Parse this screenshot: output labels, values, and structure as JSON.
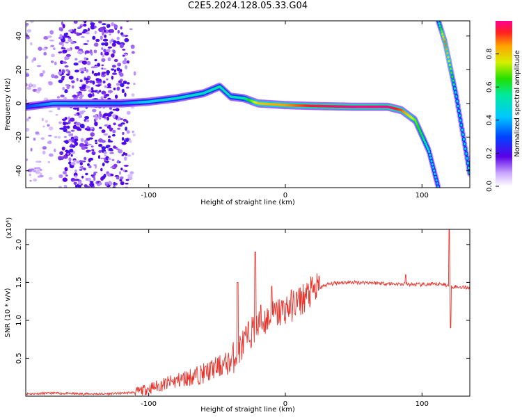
{
  "title": "C2E5.2024.128.05.33.G04",
  "colors": {
    "snr_line": "#e8322a",
    "axis": "#000000",
    "background": "#ffffff"
  },
  "chart_data": [
    {
      "type": "heatmap",
      "title": "C2E5.2024.128.05.33.G04",
      "xlabel": "Height of straight line (km)",
      "ylabel": "Frequency (Hz)",
      "xlim": [
        -190,
        135
      ],
      "ylim": [
        -50,
        49
      ],
      "x_ticks": [
        -100,
        0,
        100
      ],
      "y_ticks": [
        -40,
        -20,
        0,
        20,
        40
      ],
      "colorbar": {
        "label": "Normalized spectral amplitude",
        "range": [
          0,
          1
        ],
        "ticks": [
          0.0,
          0.2,
          0.4,
          0.6,
          0.8
        ]
      },
      "main_trace": [
        {
          "x": -190,
          "y": -2,
          "amp": 0.3
        },
        {
          "x": -170,
          "y": 0,
          "amp": 0.4
        },
        {
          "x": -120,
          "y": 0,
          "amp": 0.35
        },
        {
          "x": -100,
          "y": 1,
          "amp": 0.45
        },
        {
          "x": -80,
          "y": 3,
          "amp": 0.5
        },
        {
          "x": -60,
          "y": 6,
          "amp": 0.5
        },
        {
          "x": -48,
          "y": 10,
          "amp": 0.55
        },
        {
          "x": -40,
          "y": 4,
          "amp": 0.5
        },
        {
          "x": -30,
          "y": 3,
          "amp": 0.55
        },
        {
          "x": -20,
          "y": 0,
          "amp": 0.8
        },
        {
          "x": 0,
          "y": -1,
          "amp": 0.85
        },
        {
          "x": 20,
          "y": -1.5,
          "amp": 0.95
        },
        {
          "x": 50,
          "y": -2,
          "amp": 1.0
        },
        {
          "x": 75,
          "y": -2,
          "amp": 1.0
        },
        {
          "x": 85,
          "y": -4,
          "amp": 0.9
        },
        {
          "x": 95,
          "y": -10,
          "amp": 0.7
        },
        {
          "x": 105,
          "y": -28,
          "amp": 0.5
        },
        {
          "x": 112,
          "y": -50,
          "amp": 0.4
        }
      ],
      "secondary_trace": [
        {
          "x": 112,
          "y": 49,
          "amp": 0.5
        },
        {
          "x": 117,
          "y": 36,
          "amp": 0.9
        },
        {
          "x": 125,
          "y": 5,
          "amp": 0.5
        },
        {
          "x": 135,
          "y": -42,
          "amp": 0.5
        }
      ]
    },
    {
      "type": "line",
      "xlabel": "Height of straight line (km)",
      "ylabel": "SNR (10 * v/v)",
      "y_multiplier": "(x10⁴)",
      "xlim": [
        -190,
        135
      ],
      "ylim": [
        0,
        2.2
      ],
      "x_ticks": [
        -100,
        0,
        100
      ],
      "y_ticks": [
        0.5,
        1.0,
        1.5,
        2.0
      ],
      "series": [
        {
          "points": [
            [
              -190,
              0.03
            ],
            [
              -170,
              0.04
            ],
            [
              -150,
              0.03
            ],
            [
              -130,
              0.03
            ],
            [
              -110,
              0.05
            ],
            [
              -100,
              0.1
            ],
            [
              -90,
              0.15
            ],
            [
              -80,
              0.2
            ],
            [
              -70,
              0.25
            ],
            [
              -60,
              0.3
            ],
            [
              -50,
              0.38
            ],
            [
              -40,
              0.45
            ],
            [
              -35,
              0.6
            ],
            [
              -30,
              0.7
            ],
            [
              -25,
              0.85
            ],
            [
              -20,
              0.9
            ],
            [
              -15,
              1.0
            ],
            [
              -10,
              1.05
            ],
            [
              -5,
              1.1
            ],
            [
              0,
              1.15
            ],
            [
              10,
              1.25
            ],
            [
              20,
              1.38
            ],
            [
              30,
              1.47
            ],
            [
              40,
              1.5
            ],
            [
              60,
              1.5
            ],
            [
              80,
              1.48
            ],
            [
              100,
              1.47
            ],
            [
              115,
              1.48
            ],
            [
              120,
              1.45
            ],
            [
              135,
              1.43
            ]
          ],
          "spikes": [
            [
              -35,
              1.5
            ],
            [
              -22,
              1.9
            ],
            [
              -18,
              1.2
            ],
            [
              -10,
              1.45
            ],
            [
              88,
              1.6
            ],
            [
              120,
              2.2
            ],
            [
              121,
              0.9
            ]
          ]
        }
      ]
    }
  ]
}
